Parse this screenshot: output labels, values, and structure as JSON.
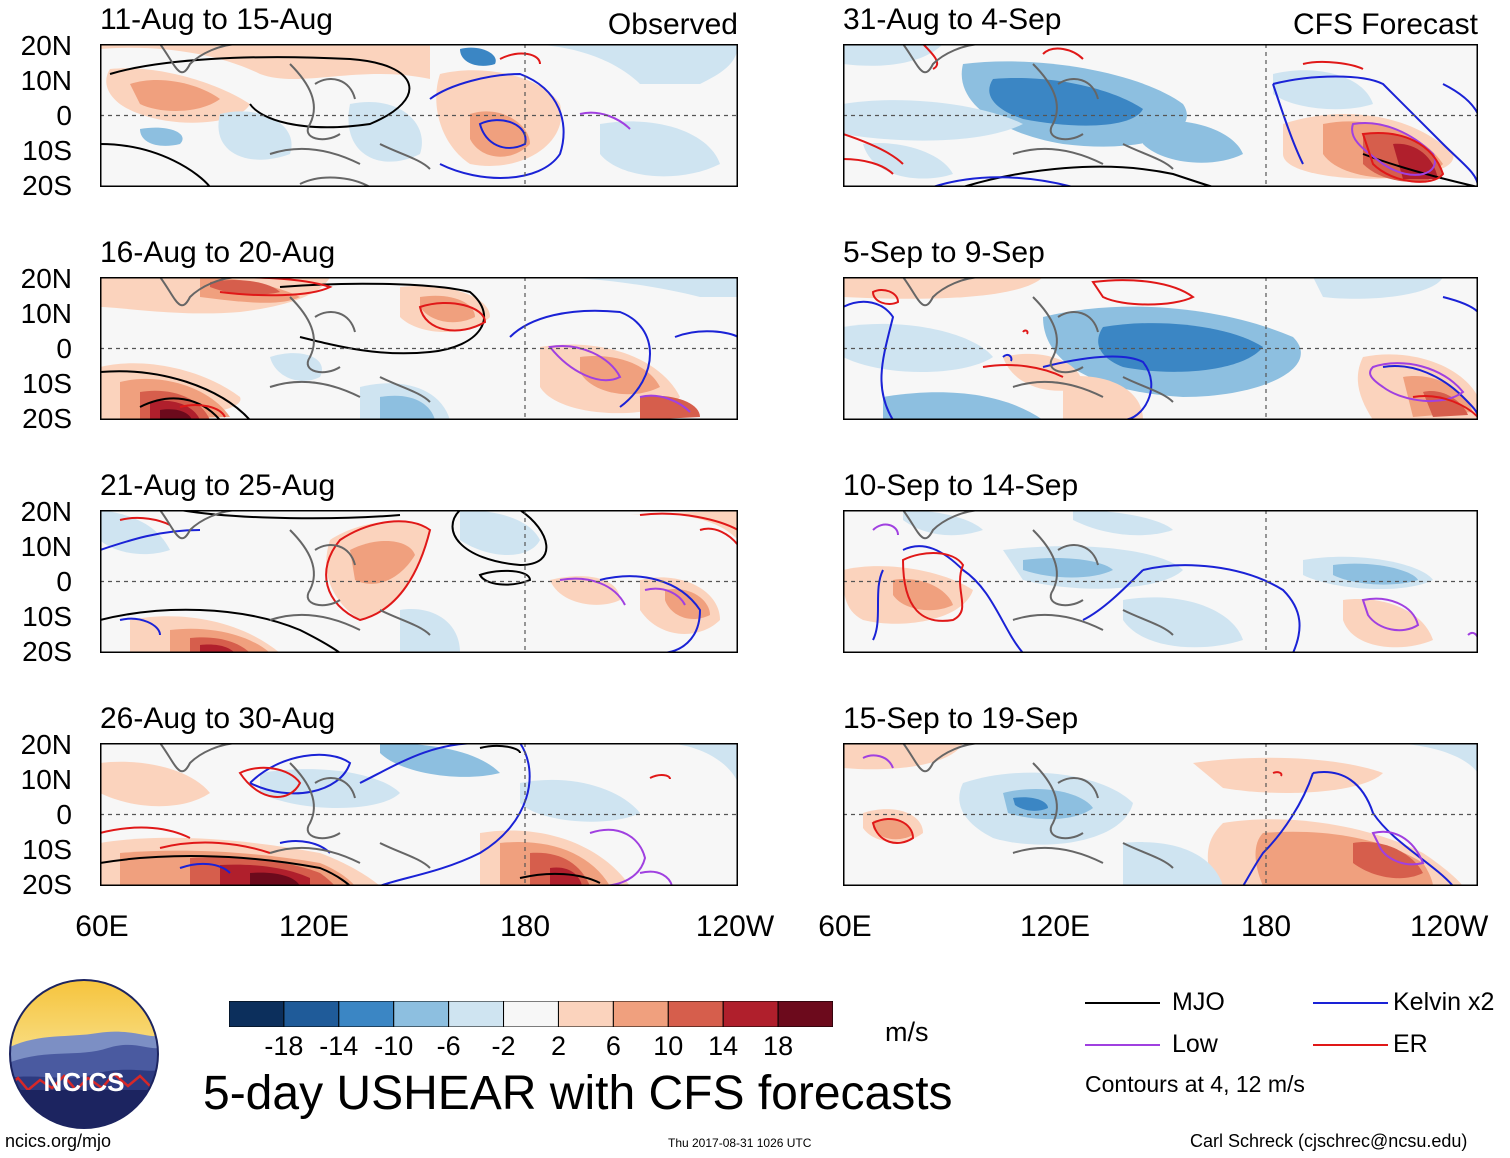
{
  "columns": {
    "observed_label": "Observed",
    "forecast_label": "CFS Forecast"
  },
  "panels_observed": [
    {
      "title": "11-Aug to 15-Aug"
    },
    {
      "title": "16-Aug to 20-Aug"
    },
    {
      "title": "21-Aug to 25-Aug"
    },
    {
      "title": "26-Aug to 30-Aug"
    }
  ],
  "panels_forecast": [
    {
      "title": "31-Aug to 4-Sep"
    },
    {
      "title": "5-Sep to 9-Sep"
    },
    {
      "title": "10-Sep to 14-Sep"
    },
    {
      "title": "15-Sep to 19-Sep"
    }
  ],
  "axes": {
    "lat_labels": [
      "20N",
      "10N",
      "0",
      "10S",
      "20S"
    ],
    "lon_labels": [
      "60E",
      "120E",
      "180",
      "120W"
    ],
    "lat_range": [
      -20,
      20
    ],
    "lon_range": [
      60,
      240
    ]
  },
  "colorbar": {
    "labels": [
      "-18",
      "-14",
      "-10",
      "-6",
      "-2",
      "2",
      "6",
      "10",
      "14",
      "18"
    ],
    "units": "m/s",
    "colors": [
      "#0c2f5c",
      "#1f5b99",
      "#3b86c4",
      "#8dbfe0",
      "#cfe4f1",
      "#f7f7f7",
      "#fbd3bd",
      "#f0a07e",
      "#d65e4c",
      "#b01f2c",
      "#6c0a1c"
    ]
  },
  "legend": {
    "items": [
      {
        "label": "MJO",
        "color": "#000000"
      },
      {
        "label": "Kelvin x2",
        "color": "#1a22d6"
      },
      {
        "label": "Low",
        "color": "#a040e0"
      },
      {
        "label": "ER",
        "color": "#e01818"
      }
    ],
    "note": "Contours at 4, 12 m/s"
  },
  "main_title": "5-day USHEAR with CFS forecasts",
  "logo_text": "NCICS",
  "footer": {
    "url": "ncics.org/mjo",
    "timestamp": "Thu 2017-08-31 1026 UTC",
    "author": "Carl Schreck (cjschrec@ncsu.edu)"
  }
}
